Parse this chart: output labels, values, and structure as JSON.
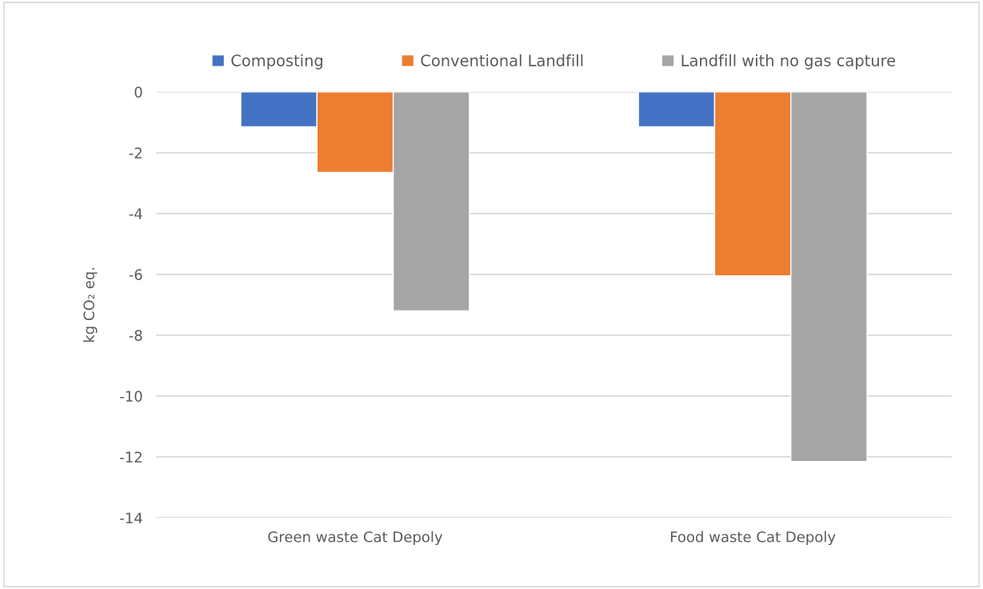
{
  "chart_data": {
    "type": "bar",
    "ylabel": "kg CO₂ eq.",
    "categories": [
      "Green waste Cat Depoly",
      "Food waste Cat Depoly"
    ],
    "series": [
      {
        "name": "Composting",
        "color": "#4472c4",
        "values": [
          -1.15,
          -1.15
        ]
      },
      {
        "name": "Conventional Landfill",
        "color": "#ed7d31",
        "values": [
          -2.65,
          -6.05
        ]
      },
      {
        "name": "Landfill with no gas capture",
        "color": "#a5a5a5",
        "values": [
          -7.2,
          -12.15
        ]
      }
    ],
    "ylim": [
      -14,
      0
    ],
    "yticks": [
      0,
      -2,
      -4,
      -6,
      -8,
      -10,
      -12,
      -14
    ],
    "grid": "y",
    "legend": "top"
  }
}
